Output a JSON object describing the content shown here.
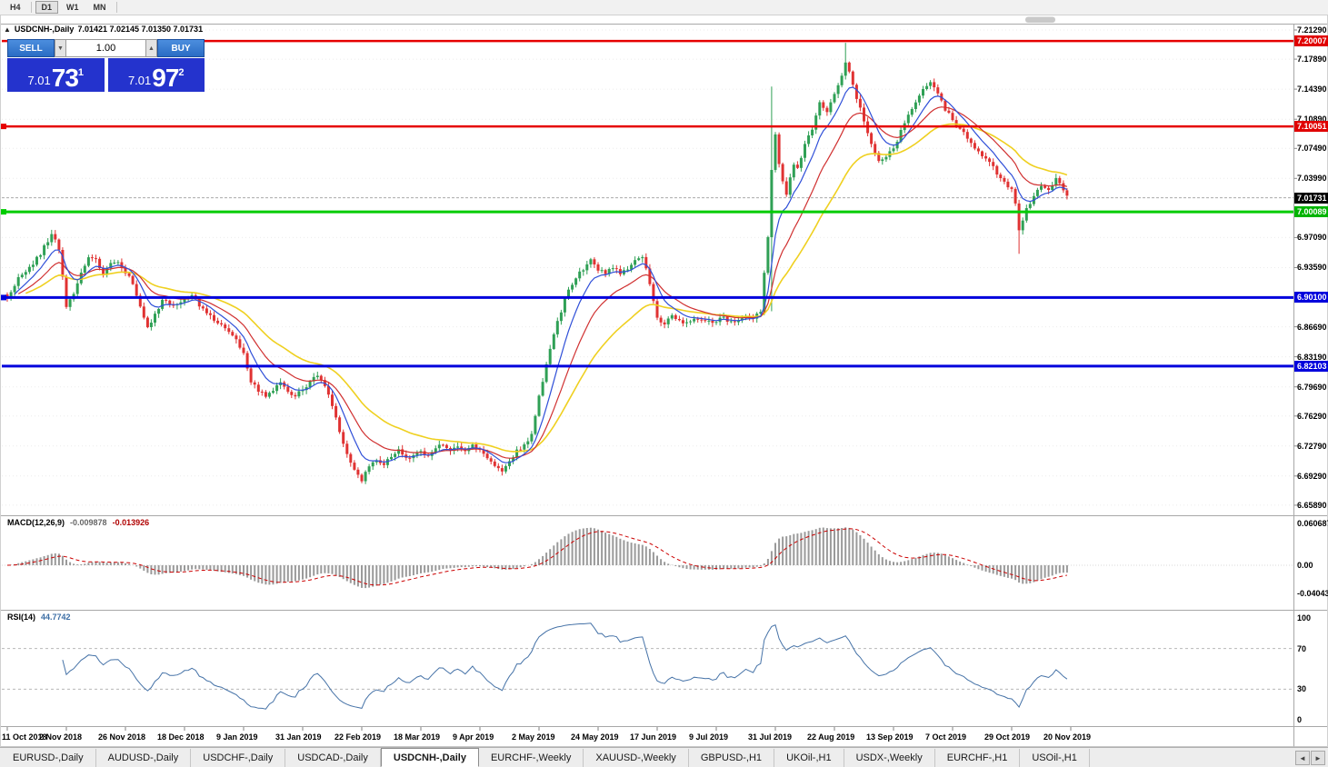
{
  "topbar": {
    "timeframes": [
      {
        "label": "H4",
        "active": false
      },
      {
        "label": "D1",
        "active": true
      },
      {
        "label": "W1",
        "active": false
      },
      {
        "label": "MN",
        "active": false
      }
    ]
  },
  "chart": {
    "symbol_header": "USDCNH-,Daily",
    "ohlc_header": "7.01421 7.02145 7.01350 7.01731",
    "trade_panel": {
      "sell_label": "SELL",
      "buy_label": "BUY",
      "volume": "1.00",
      "bid": {
        "prefix": "7.01",
        "big": "73",
        "sup": "1"
      },
      "ask": {
        "prefix": "7.01",
        "big": "97",
        "sup": "2"
      }
    },
    "price_axis": [
      {
        "label": "7.21290"
      },
      {
        "label": "7.20007",
        "badge": "red"
      },
      {
        "label": "7.17890"
      },
      {
        "label": "7.14390"
      },
      {
        "label": "7.10890"
      },
      {
        "label": "7.10051",
        "badge": "red"
      },
      {
        "label": "7.07490"
      },
      {
        "label": "7.03990"
      },
      {
        "label": "7.01731",
        "badge": "black"
      },
      {
        "label": "7.00089",
        "badge": "green"
      },
      {
        "label": "6.97090"
      },
      {
        "label": "6.93590"
      },
      {
        "label": "6.90100",
        "badge": "blue"
      },
      {
        "label": "6.86690"
      },
      {
        "label": "6.83190"
      },
      {
        "label": "6.82103",
        "badge": "blue"
      },
      {
        "label": "6.79690"
      },
      {
        "label": "6.76290"
      },
      {
        "label": "6.72790"
      },
      {
        "label": "6.69290"
      },
      {
        "label": "6.65890"
      }
    ]
  },
  "macd_panel": {
    "label": "MACD(12,26,9)",
    "value_main": "-0.009878",
    "value_signal": "-0.013926",
    "axis": [
      "0.060687",
      "0.00",
      "-0.040432"
    ]
  },
  "rsi_panel": {
    "label": "RSI(14)",
    "value": "44.7742",
    "axis": [
      "100",
      "70",
      "30",
      "0"
    ]
  },
  "time_axis": [
    "11 Oct 2018",
    "2 Nov 2018",
    "26 Nov 2018",
    "18 Dec 2018",
    "9 Jan 2019",
    "31 Jan 2019",
    "22 Feb 2019",
    "18 Mar 2019",
    "9 Apr 2019",
    "2 May 2019",
    "24 May 2019",
    "17 Jun 2019",
    "9 Jul 2019",
    "31 Jul 2019",
    "22 Aug 2019",
    "13 Sep 2019",
    "7 Oct 2019",
    "29 Oct 2019",
    "20 Nov 2019"
  ],
  "tabs": [
    {
      "label": "EURUSD-,Daily"
    },
    {
      "label": "AUDUSD-,Daily"
    },
    {
      "label": "USDCHF-,Daily"
    },
    {
      "label": "USDCAD-,Daily"
    },
    {
      "label": "USDCNH-,Daily",
      "active": true
    },
    {
      "label": "EURCHF-,Weekly"
    },
    {
      "label": "XAUUSD-,Weekly"
    },
    {
      "label": "GBPUSD-,H1"
    },
    {
      "label": "UKOil-,H1"
    },
    {
      "label": "USDX-,Weekly"
    },
    {
      "label": "EURCHF-,H1"
    },
    {
      "label": "USOil-,H1"
    }
  ],
  "chart_data": {
    "type": "candlestick",
    "symbol": "USDCNH-",
    "timeframe": "Daily",
    "current_ohlc": {
      "open": 7.01421,
      "high": 7.02145,
      "low": 7.0135,
      "close": 7.01731
    },
    "bid": 7.0173,
    "ask": 7.0197,
    "price_axis_range": [
      6.6589,
      7.2129
    ],
    "x_tick_dates": [
      "11 Oct 2018",
      "2 Nov 2018",
      "26 Nov 2018",
      "18 Dec 2018",
      "9 Jan 2019",
      "31 Jan 2019",
      "22 Feb 2019",
      "18 Mar 2019",
      "9 Apr 2019",
      "2 May 2019",
      "24 May 2019",
      "17 Jun 2019",
      "9 Jul 2019",
      "31 Jul 2019",
      "22 Aug 2019",
      "13 Sep 2019",
      "7 Oct 2019",
      "29 Oct 2019",
      "20 Nov 2019"
    ],
    "days_per_tick": 16,
    "total_days": 288,
    "close_anchors": [
      [
        0,
        6.9
      ],
      [
        3,
        6.924
      ],
      [
        6,
        6.936
      ],
      [
        9,
        6.952
      ],
      [
        12,
        6.976
      ],
      [
        14,
        6.958
      ],
      [
        16,
        6.89
      ],
      [
        18,
        6.905
      ],
      [
        20,
        6.93
      ],
      [
        22,
        6.95
      ],
      [
        24,
        6.944
      ],
      [
        26,
        6.93
      ],
      [
        28,
        6.94
      ],
      [
        30,
        6.944
      ],
      [
        32,
        6.93
      ],
      [
        34,
        6.918
      ],
      [
        36,
        6.89
      ],
      [
        38,
        6.864
      ],
      [
        40,
        6.88
      ],
      [
        42,
        6.898
      ],
      [
        44,
        6.894
      ],
      [
        46,
        6.892
      ],
      [
        48,
        6.9
      ],
      [
        50,
        6.905
      ],
      [
        52,
        6.892
      ],
      [
        54,
        6.882
      ],
      [
        56,
        6.876
      ],
      [
        58,
        6.87
      ],
      [
        60,
        6.86
      ],
      [
        62,
        6.85
      ],
      [
        64,
        6.834
      ],
      [
        66,
        6.802
      ],
      [
        68,
        6.792
      ],
      [
        70,
        6.786
      ],
      [
        72,
        6.793
      ],
      [
        74,
        6.801
      ],
      [
        76,
        6.792
      ],
      [
        78,
        6.786
      ],
      [
        80,
        6.793
      ],
      [
        82,
        6.801
      ],
      [
        84,
        6.812
      ],
      [
        86,
        6.8
      ],
      [
        88,
        6.776
      ],
      [
        90,
        6.742
      ],
      [
        92,
        6.716
      ],
      [
        94,
        6.698
      ],
      [
        96,
        6.689
      ],
      [
        98,
        6.704
      ],
      [
        100,
        6.712
      ],
      [
        102,
        6.706
      ],
      [
        104,
        6.716
      ],
      [
        106,
        6.722
      ],
      [
        108,
        6.712
      ],
      [
        110,
        6.718
      ],
      [
        112,
        6.722
      ],
      [
        114,
        6.716
      ],
      [
        116,
        6.724
      ],
      [
        118,
        6.73
      ],
      [
        120,
        6.722
      ],
      [
        122,
        6.728
      ],
      [
        124,
        6.721
      ],
      [
        126,
        6.729
      ],
      [
        128,
        6.724
      ],
      [
        130,
        6.712
      ],
      [
        132,
        6.704
      ],
      [
        134,
        6.7
      ],
      [
        136,
        6.712
      ],
      [
        138,
        6.722
      ],
      [
        140,
        6.73
      ],
      [
        142,
        6.74
      ],
      [
        144,
        6.788
      ],
      [
        146,
        6.822
      ],
      [
        148,
        6.858
      ],
      [
        150,
        6.886
      ],
      [
        152,
        6.91
      ],
      [
        155,
        6.931
      ],
      [
        158,
        6.944
      ],
      [
        160,
        6.934
      ],
      [
        162,
        6.927
      ],
      [
        164,
        6.937
      ],
      [
        166,
        6.929
      ],
      [
        168,
        6.934
      ],
      [
        170,
        6.944
      ],
      [
        172,
        6.95
      ],
      [
        174,
        6.918
      ],
      [
        176,
        6.876
      ],
      [
        178,
        6.869
      ],
      [
        180,
        6.879
      ],
      [
        182,
        6.874
      ],
      [
        184,
        6.871
      ],
      [
        186,
        6.877
      ],
      [
        188,
        6.873
      ],
      [
        190,
        6.875
      ],
      [
        192,
        6.873
      ],
      [
        194,
        6.877
      ],
      [
        196,
        6.871
      ],
      [
        198,
        6.875
      ],
      [
        200,
        6.879
      ],
      [
        202,
        6.877
      ],
      [
        204,
        6.884
      ],
      [
        205,
        6.928
      ],
      [
        206,
        6.972
      ],
      [
        207,
        7.048
      ],
      [
        208,
        7.092
      ],
      [
        209,
        7.058
      ],
      [
        210,
        7.038
      ],
      [
        211,
        7.022
      ],
      [
        212,
        7.04
      ],
      [
        213,
        7.058
      ],
      [
        214,
        7.052
      ],
      [
        215,
        7.063
      ],
      [
        216,
        7.078
      ],
      [
        218,
        7.098
      ],
      [
        220,
        7.128
      ],
      [
        222,
        7.118
      ],
      [
        224,
        7.138
      ],
      [
        226,
        7.158
      ],
      [
        227,
        7.176
      ],
      [
        228,
        7.162
      ],
      [
        230,
        7.132
      ],
      [
        232,
        7.108
      ],
      [
        234,
        7.078
      ],
      [
        236,
        7.058
      ],
      [
        238,
        7.067
      ],
      [
        240,
        7.074
      ],
      [
        242,
        7.094
      ],
      [
        244,
        7.112
      ],
      [
        246,
        7.128
      ],
      [
        248,
        7.145
      ],
      [
        250,
        7.152
      ],
      [
        252,
        7.138
      ],
      [
        254,
        7.12
      ],
      [
        256,
        7.108
      ],
      [
        258,
        7.098
      ],
      [
        260,
        7.088
      ],
      [
        262,
        7.076
      ],
      [
        264,
        7.066
      ],
      [
        266,
        7.06
      ],
      [
        268,
        7.046
      ],
      [
        270,
        7.034
      ],
      [
        272,
        7.026
      ],
      [
        273,
        7.01
      ],
      [
        274,
        6.98
      ],
      [
        275,
        6.99
      ],
      [
        276,
        7.004
      ],
      [
        278,
        7.02
      ],
      [
        280,
        7.03
      ],
      [
        282,
        7.024
      ],
      [
        284,
        7.038
      ],
      [
        285,
        7.034
      ],
      [
        286,
        7.026
      ],
      [
        287,
        7.0173
      ]
    ],
    "special_wicks": [
      {
        "day": 207,
        "high": 7.147,
        "low": 6.885
      },
      {
        "day": 227,
        "high": 7.198
      },
      {
        "day": 274,
        "low": 6.952
      }
    ],
    "horizontal_lines": [
      {
        "price": 7.20007,
        "color": "#E60000",
        "width": 2.5
      },
      {
        "price": 7.10051,
        "color": "#E60000",
        "width": 2.5,
        "handles": true
      },
      {
        "price": 7.00089,
        "color": "#00CC00",
        "width": 3,
        "handles": true
      },
      {
        "price": 6.901,
        "color": "#0000DC",
        "width": 3,
        "handles": true
      },
      {
        "price": 6.82103,
        "color": "#0000DC",
        "width": 3
      }
    ],
    "moving_averages": [
      {
        "name": "fast",
        "period": 8,
        "color": "#2F4FD8"
      },
      {
        "name": "medium",
        "period": 17,
        "color": "#D03030"
      },
      {
        "name": "slow",
        "period": 34,
        "color": "#EFD020"
      }
    ],
    "macd": {
      "params": [
        12,
        26,
        9
      ],
      "main": -0.009878,
      "signal": -0.013926,
      "axis_max": 0.060687,
      "axis_min": -0.040432
    },
    "rsi": {
      "period": 14,
      "value": 44.7742,
      "levels": [
        70,
        30
      ],
      "range": [
        0,
        100
      ]
    },
    "colors": {
      "up": "#2FA055",
      "down": "#E03232",
      "ma_fast": "#2F4FD8",
      "ma_med": "#D03030",
      "ma_slow": "#EFD020",
      "macd_hist": "#9A9A9A",
      "macd_signal": "#CC0000",
      "rsi_line": "#4572A7"
    }
  }
}
